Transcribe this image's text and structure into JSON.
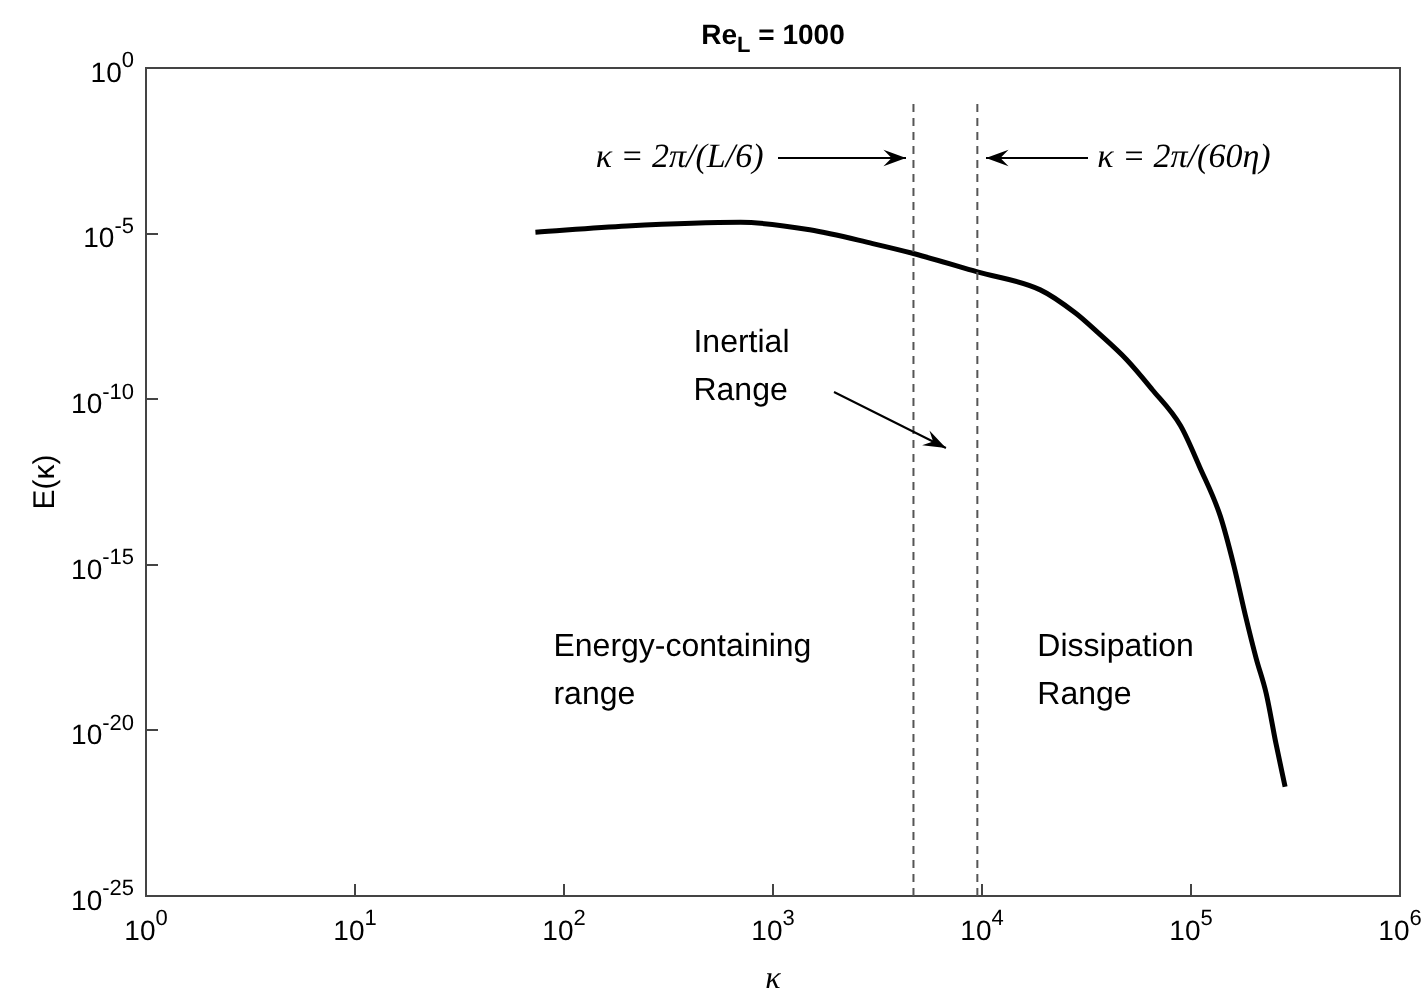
{
  "chart_data": {
    "type": "line",
    "title": "Re$_{L}$ = 1000",
    "xlabel": "κ",
    "ylabel": "E(κ)",
    "log": "xy",
    "grid": false,
    "legend": false,
    "marker": "none",
    "line_style": "solid",
    "xlim": [
      1,
      1000000
    ],
    "xticks": [
      {
        "value": 1,
        "label": "10$^{0}$"
      },
      {
        "value": 10,
        "label": "10$^{1}$"
      },
      {
        "value": 100,
        "label": "10$^{2}$"
      },
      {
        "value": 1000,
        "label": "10$^{3}$"
      },
      {
        "value": 10000,
        "label": "10$^{4}$"
      },
      {
        "value": 100000,
        "label": "10$^{5}$"
      },
      {
        "value": 1000000,
        "label": "10$^{6}$"
      }
    ],
    "ylim": [
      1e-25,
      1
    ],
    "yticks": [
      {
        "value": 1e-25,
        "label": "10$^{-25}$"
      },
      {
        "value": 1e-20,
        "label": "10$^{-20}$"
      },
      {
        "value": 1e-15,
        "label": "10$^{-15}$"
      },
      {
        "value": 1e-10,
        "label": "10$^{-10}$"
      },
      {
        "value": 1e-05,
        "label": "10$^{-5}$"
      },
      {
        "value": 1,
        "label": "10$^{0}$"
      }
    ],
    "series": [
      {
        "color": "#000000",
        "x": [
          73,
          200,
          700,
          1500,
          3000,
          4700,
          9500,
          19000,
          28000,
          36000,
          49000,
          65000,
          89000,
          110000,
          138000,
          160000,
          182000,
          205000,
          229000,
          255000,
          282000
        ],
        "values": [
          1.1e-05,
          1.7e-05,
          2.2e-05,
          1.3e-05,
          5e-06,
          2.5e-06,
          7e-07,
          2e-07,
          4e-08,
          1e-08,
          1.6e-09,
          2e-10,
          1.6e-11,
          9e-13,
          3e-14,
          1e-15,
          3e-17,
          1.5e-18,
          1.3e-19,
          4e-21,
          2e-22
        ]
      }
    ],
    "ref_lines": [
      {
        "axis": "x",
        "value": 4700,
        "line_style": "dashed",
        "color": "#555555"
      },
      {
        "axis": "x",
        "value": 9500,
        "line_style": "dashed",
        "color": "#555555"
      }
    ],
    "annotations": [
      "κ = 2π/(L/6)",
      "κ = 2π/(60η)",
      "Inertial Range",
      "Energy-containing range",
      "Dissipation Range"
    ]
  }
}
